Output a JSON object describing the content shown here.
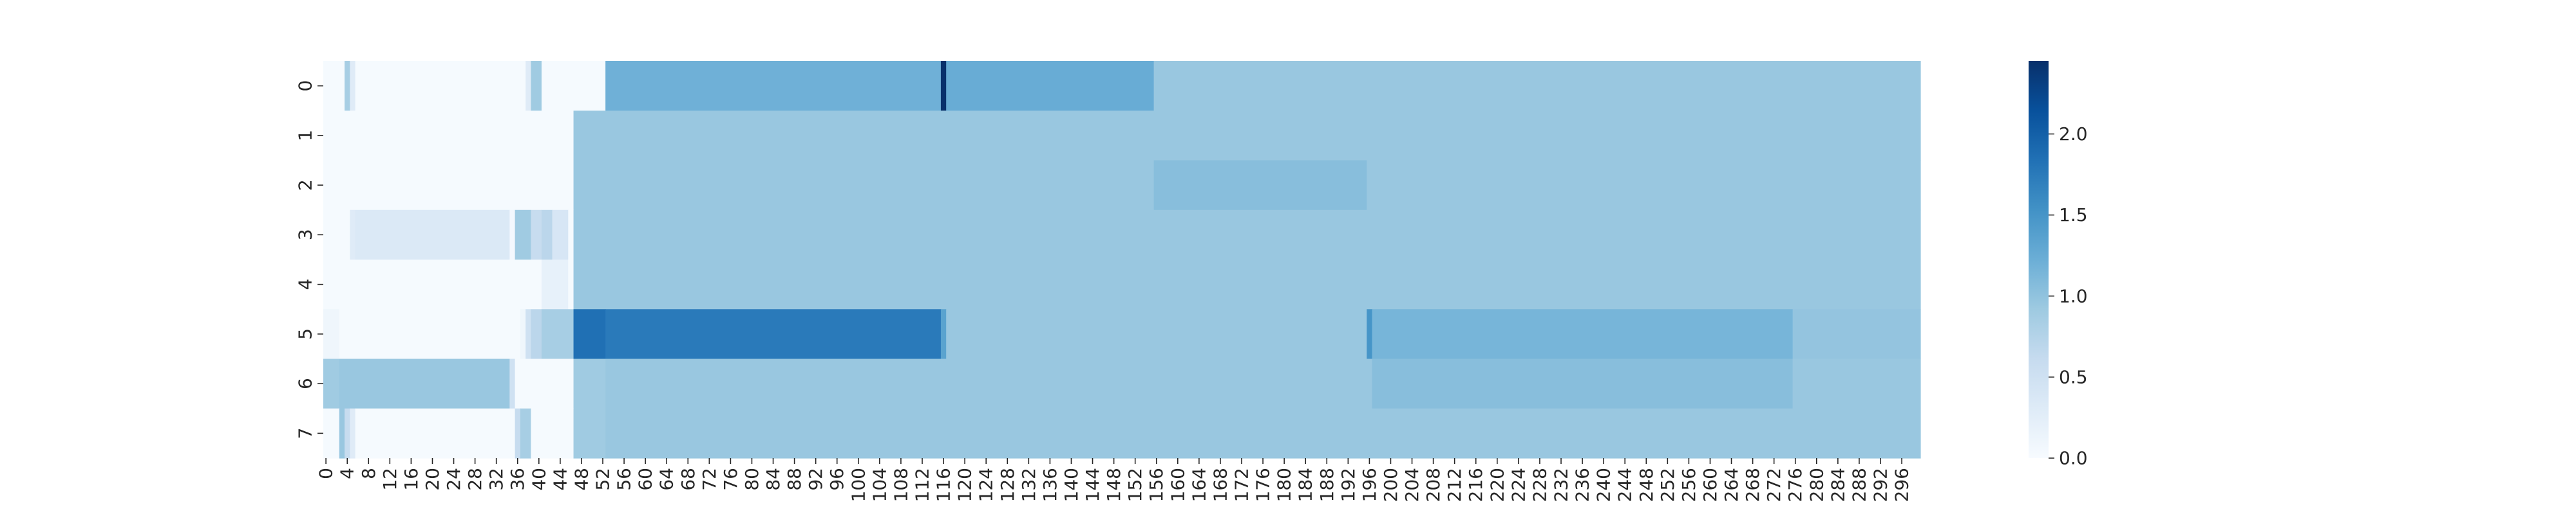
{
  "chart_data": {
    "type": "heatmap",
    "title": "",
    "xlabel": "",
    "ylabel": "",
    "x_count": 300,
    "y_count": 8,
    "x_tick_labels": [
      "0",
      "4",
      "8",
      "12",
      "16",
      "20",
      "24",
      "28",
      "32",
      "36",
      "40",
      "44",
      "48",
      "52",
      "56",
      "60",
      "64",
      "68",
      "72",
      "76",
      "80",
      "84",
      "88",
      "92",
      "96",
      "100",
      "104",
      "108",
      "112",
      "116",
      "120",
      "124",
      "128",
      "132",
      "136",
      "140",
      "144",
      "148",
      "152",
      "156",
      "160",
      "164",
      "168",
      "172",
      "176",
      "180",
      "184",
      "188",
      "192",
      "196",
      "200",
      "204",
      "208",
      "212",
      "216",
      "220",
      "224",
      "228",
      "232",
      "236",
      "240",
      "244",
      "248",
      "252",
      "256",
      "260",
      "264",
      "268",
      "272",
      "276",
      "280",
      "284",
      "288",
      "292",
      "296"
    ],
    "y_tick_labels": [
      "0",
      "1",
      "2",
      "3",
      "4",
      "5",
      "6",
      "7"
    ],
    "colorbar": {
      "colormap": "Blues",
      "vmin": 0.0,
      "vmax": 2.45,
      "ticks": [
        "0.0",
        "0.5",
        "1.0",
        "1.5",
        "2.0"
      ],
      "colors": [
        "#f7fbff",
        "#deebf7",
        "#c6dbef",
        "#9ecae1",
        "#6baed6",
        "#4292c6",
        "#2171b5",
        "#08519c",
        "#08306b"
      ]
    },
    "base_value": 0.02,
    "rows": [
      {
        "row": 0,
        "segments": [
          [
            0,
            4,
            0.02
          ],
          [
            4,
            5,
            0.85
          ],
          [
            5,
            6,
            0.3
          ],
          [
            6,
            38,
            0.02
          ],
          [
            38,
            39,
            0.3
          ],
          [
            39,
            41,
            0.9
          ],
          [
            41,
            53,
            0.02
          ],
          [
            53,
            116,
            1.2
          ],
          [
            116,
            117,
            2.45
          ],
          [
            117,
            156,
            1.25
          ],
          [
            156,
            300,
            0.95
          ]
        ]
      },
      {
        "row": 1,
        "segments": [
          [
            0,
            47,
            0.02
          ],
          [
            47,
            300,
            0.95
          ]
        ]
      },
      {
        "row": 2,
        "segments": [
          [
            0,
            47,
            0.02
          ],
          [
            47,
            156,
            0.95
          ],
          [
            156,
            196,
            1.05
          ],
          [
            196,
            300,
            0.95
          ]
        ]
      },
      {
        "row": 3,
        "segments": [
          [
            0,
            5,
            0.02
          ],
          [
            5,
            6,
            0.3
          ],
          [
            6,
            35,
            0.35
          ],
          [
            35,
            36,
            0.05
          ],
          [
            36,
            39,
            0.9
          ],
          [
            39,
            41,
            0.6
          ],
          [
            41,
            43,
            0.7
          ],
          [
            43,
            46,
            0.4
          ],
          [
            46,
            47,
            0.02
          ],
          [
            47,
            300,
            0.95
          ]
        ]
      },
      {
        "row": 4,
        "segments": [
          [
            0,
            41,
            0.02
          ],
          [
            41,
            46,
            0.2
          ],
          [
            46,
            47,
            0.02
          ],
          [
            47,
            300,
            0.95
          ]
        ]
      },
      {
        "row": 5,
        "segments": [
          [
            0,
            3,
            0.1
          ],
          [
            3,
            37,
            0.02
          ],
          [
            37,
            38,
            0.1
          ],
          [
            38,
            39,
            0.5
          ],
          [
            39,
            41,
            0.7
          ],
          [
            41,
            47,
            0.85
          ],
          [
            47,
            53,
            1.85
          ],
          [
            53,
            116,
            1.75
          ],
          [
            116,
            117,
            1.35
          ],
          [
            117,
            196,
            0.95
          ],
          [
            196,
            197,
            1.5
          ],
          [
            197,
            276,
            1.15
          ],
          [
            276,
            300,
            0.98
          ]
        ]
      },
      {
        "row": 6,
        "segments": [
          [
            0,
            3,
            0.9
          ],
          [
            3,
            35,
            0.95
          ],
          [
            35,
            36,
            0.5
          ],
          [
            36,
            47,
            0.02
          ],
          [
            47,
            53,
            0.9
          ],
          [
            53,
            197,
            0.95
          ],
          [
            197,
            276,
            1.05
          ],
          [
            276,
            300,
            0.95
          ]
        ]
      },
      {
        "row": 7,
        "segments": [
          [
            0,
            3,
            0.02
          ],
          [
            3,
            4,
            0.95
          ],
          [
            4,
            5,
            0.6
          ],
          [
            5,
            6,
            0.3
          ],
          [
            6,
            36,
            0.02
          ],
          [
            36,
            37,
            0.6
          ],
          [
            37,
            39,
            0.85
          ],
          [
            39,
            47,
            0.02
          ],
          [
            47,
            53,
            0.9
          ],
          [
            53,
            300,
            0.95
          ]
        ]
      }
    ]
  }
}
